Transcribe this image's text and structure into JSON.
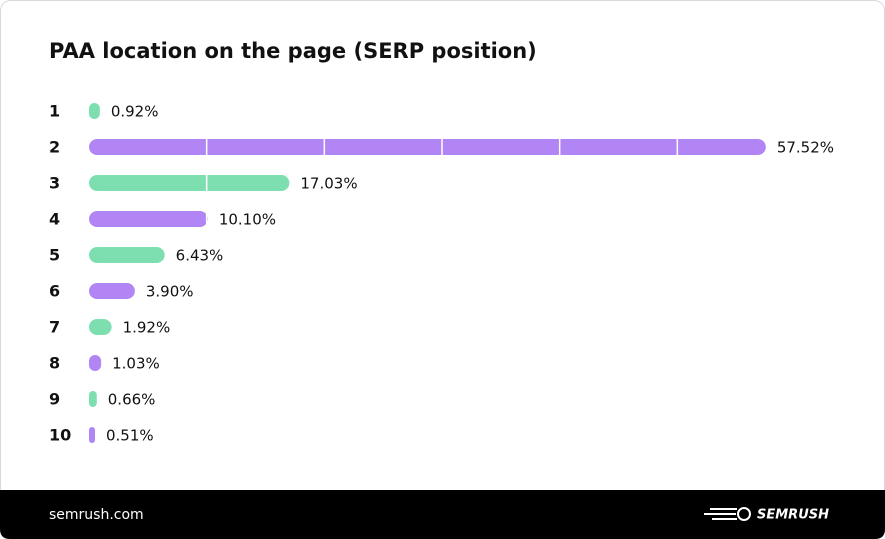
{
  "chart_data": {
    "type": "hbar",
    "title": "PAA location on the page (SERP position)",
    "categories": [
      "1",
      "2",
      "3",
      "4",
      "5",
      "6",
      "7",
      "8",
      "9",
      "10"
    ],
    "values": [
      0.92,
      57.52,
      17.03,
      10.1,
      6.43,
      3.9,
      1.92,
      1.03,
      0.66,
      0.51
    ],
    "value_labels": [
      "0.92%",
      "57.52%",
      "17.03%",
      "10.10%",
      "6.43%",
      "3.90%",
      "1.92%",
      "1.03%",
      "0.66%",
      "0.51%"
    ],
    "colors": [
      "#7ddfb0",
      "#b185f4",
      "#7ddfb0",
      "#b185f4",
      "#7ddfb0",
      "#b185f4",
      "#7ddfb0",
      "#b185f4",
      "#7ddfb0",
      "#b185f4"
    ],
    "xlim": [
      0,
      60
    ],
    "xticks": [
      10,
      20,
      30,
      40,
      50
    ],
    "grid": true
  },
  "footer": {
    "site": "semrush.com",
    "logo": "SEMRUSH"
  }
}
